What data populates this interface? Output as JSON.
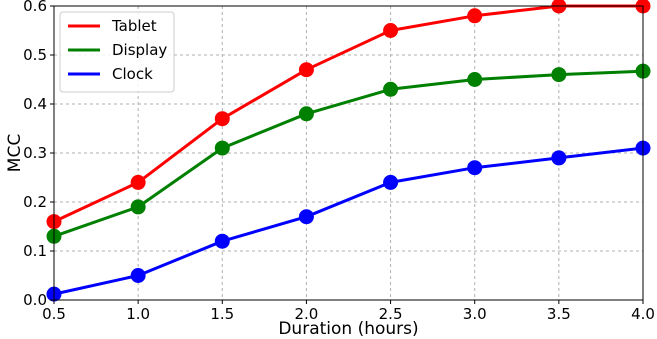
{
  "chart_data": {
    "type": "line",
    "xlabel": "Duration (hours)",
    "ylabel": "MCC",
    "xlim": [
      0.5,
      4.0
    ],
    "ylim": [
      0.0,
      0.6
    ],
    "x": [
      0.5,
      1.0,
      1.5,
      2.0,
      2.5,
      3.0,
      3.5,
      4.0
    ],
    "x_ticks": [
      "0.5",
      "1.0",
      "1.5",
      "2.0",
      "2.5",
      "3.0",
      "3.5",
      "4.0"
    ],
    "y_ticks": [
      "0.0",
      "0.1",
      "0.2",
      "0.3",
      "0.4",
      "0.5",
      "0.6"
    ],
    "grid": true,
    "legend_position": "top-left",
    "series": [
      {
        "name": "Tablet",
        "color": "#ff0000",
        "values": [
          0.16,
          0.24,
          0.37,
          0.47,
          0.55,
          0.58,
          0.6,
          0.6
        ]
      },
      {
        "name": "Display",
        "color": "#008000",
        "values": [
          0.13,
          0.19,
          0.31,
          0.38,
          0.43,
          0.45,
          0.46,
          0.467
        ]
      },
      {
        "name": "Clock",
        "color": "#0000ff",
        "values": [
          0.012,
          0.05,
          0.12,
          0.17,
          0.24,
          0.27,
          0.29,
          0.31
        ]
      }
    ]
  }
}
